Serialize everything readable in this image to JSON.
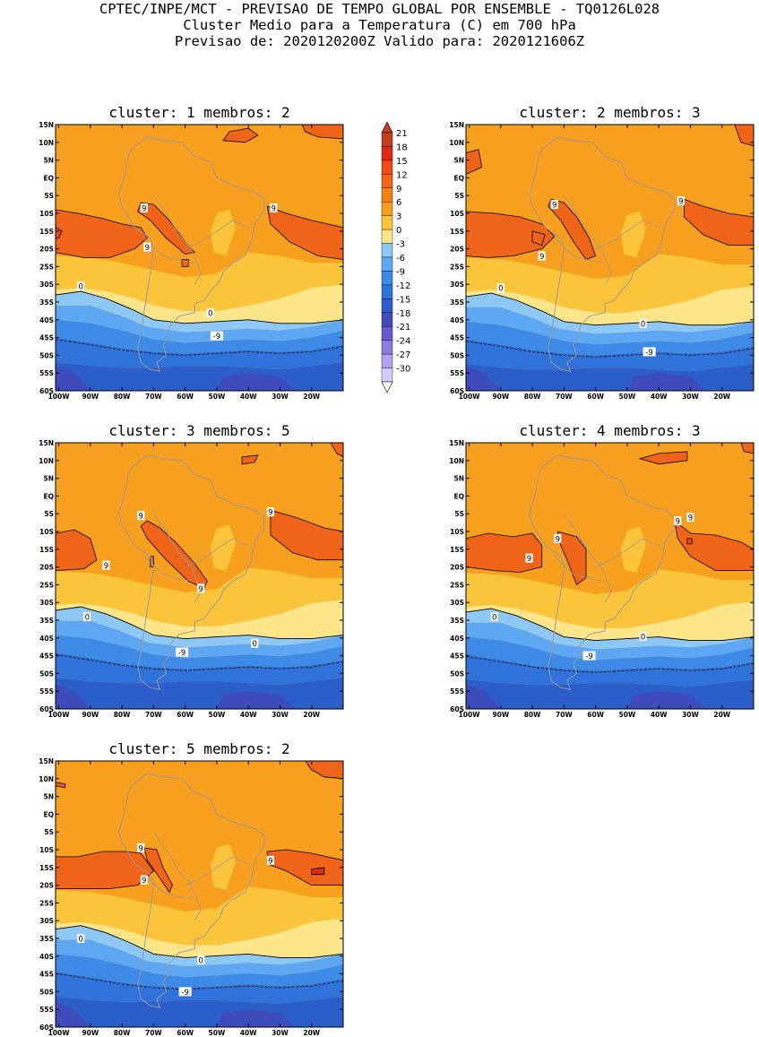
{
  "header": {
    "line1": "CPTEC/INPE/MCT - PREVISAO DE TEMPO GLOBAL POR ENSEMBLE - TQ0126L028",
    "line2": "Cluster Medio para a Temperatura (C) em 700 hPa",
    "line3": "Previsao de: 2020120200Z   Valido para: 2020121606Z"
  },
  "colors": {
    "map_outline": "#9a9a9a",
    "contour": "#000000"
  },
  "chart_data": {
    "type": "heatmap",
    "title": "Cluster Medio para a Temperatura (C) em 700 hPa",
    "x_ticks": [
      "100W",
      "90W",
      "80W",
      "70W",
      "60W",
      "50W",
      "40W",
      "30W",
      "20W"
    ],
    "y_ticks": [
      "15N",
      "10N",
      "5N",
      "EQ",
      "5S",
      "10S",
      "15S",
      "20S",
      "25S",
      "30S",
      "35S",
      "40S",
      "45S",
      "50S",
      "55S",
      "60S"
    ],
    "xlim": [
      -101,
      -10
    ],
    "ylim": [
      -60,
      15
    ],
    "colorbar": {
      "labels": [
        "21",
        "18",
        "15",
        "12",
        "9",
        "6",
        "3",
        "0",
        "-3",
        "-6",
        "-9",
        "-12",
        "-15",
        "-18",
        "-21",
        "-24",
        "-27",
        "-30"
      ],
      "colors": [
        "#c03f1f",
        "#e02a14",
        "#f24a17",
        "#ef6418",
        "#f4821a",
        "#f79f1e",
        "#fbc53b",
        "#fde58a",
        "#8ec9f6",
        "#5ea7f3",
        "#3e8ae7",
        "#2f73da",
        "#2b5ec8",
        "#3e4bba",
        "#6a59cf",
        "#8c7be0",
        "#b0a2ec",
        "#d3cbf5"
      ]
    },
    "panels": [
      {
        "title": "cluster: 1   membros: 2",
        "cluster": 1,
        "members": 2,
        "contour_labels": [
          "9",
          "9",
          "9",
          "0",
          "0",
          "-9"
        ]
      },
      {
        "title": "cluster: 2   membros: 3",
        "cluster": 2,
        "members": 3,
        "contour_labels": [
          "9",
          "9",
          "9",
          "0",
          "0",
          "-9"
        ]
      },
      {
        "title": "cluster: 3   membros: 5",
        "cluster": 3,
        "members": 5,
        "contour_labels": [
          "9",
          "9",
          "9",
          "9",
          "0",
          "0",
          "-9"
        ]
      },
      {
        "title": "cluster: 4   membros: 3",
        "cluster": 4,
        "members": 3,
        "contour_labels": [
          "9",
          "9",
          "9",
          "9",
          "0",
          "0",
          "-9"
        ]
      },
      {
        "title": "cluster: 5   membros: 2",
        "cluster": 5,
        "members": 2,
        "contour_labels": [
          "9",
          "9",
          "9",
          "0",
          "0",
          "-9"
        ]
      }
    ]
  }
}
